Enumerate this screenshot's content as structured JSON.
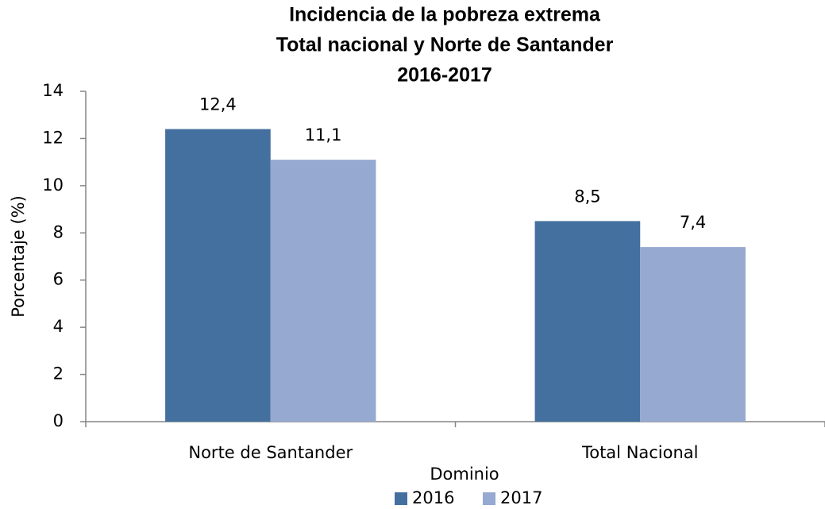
{
  "chart_data": {
    "type": "bar",
    "title": [
      "Incidencia de la pobreza extrema",
      "Total nacional y Norte de Santander",
      "2016-2017"
    ],
    "y_label": "Porcentaje (%)",
    "x_label": "Dominio",
    "categories": [
      "Norte de Santander",
      "Total Nacional"
    ],
    "series": [
      {
        "name": "2016",
        "color": "#44709f",
        "values": [
          12.4,
          8.5
        ],
        "value_labels": [
          "12,4",
          "8,5"
        ]
      },
      {
        "name": "2017",
        "color": "#95a9d1",
        "values": [
          11.1,
          7.4
        ],
        "value_labels": [
          "11,1",
          "7,4"
        ]
      }
    ],
    "ylim": [
      0,
      14
    ],
    "yticks": [
      0,
      2,
      4,
      6,
      8,
      10,
      12,
      14
    ],
    "grid": false,
    "legend": "bottom"
  }
}
